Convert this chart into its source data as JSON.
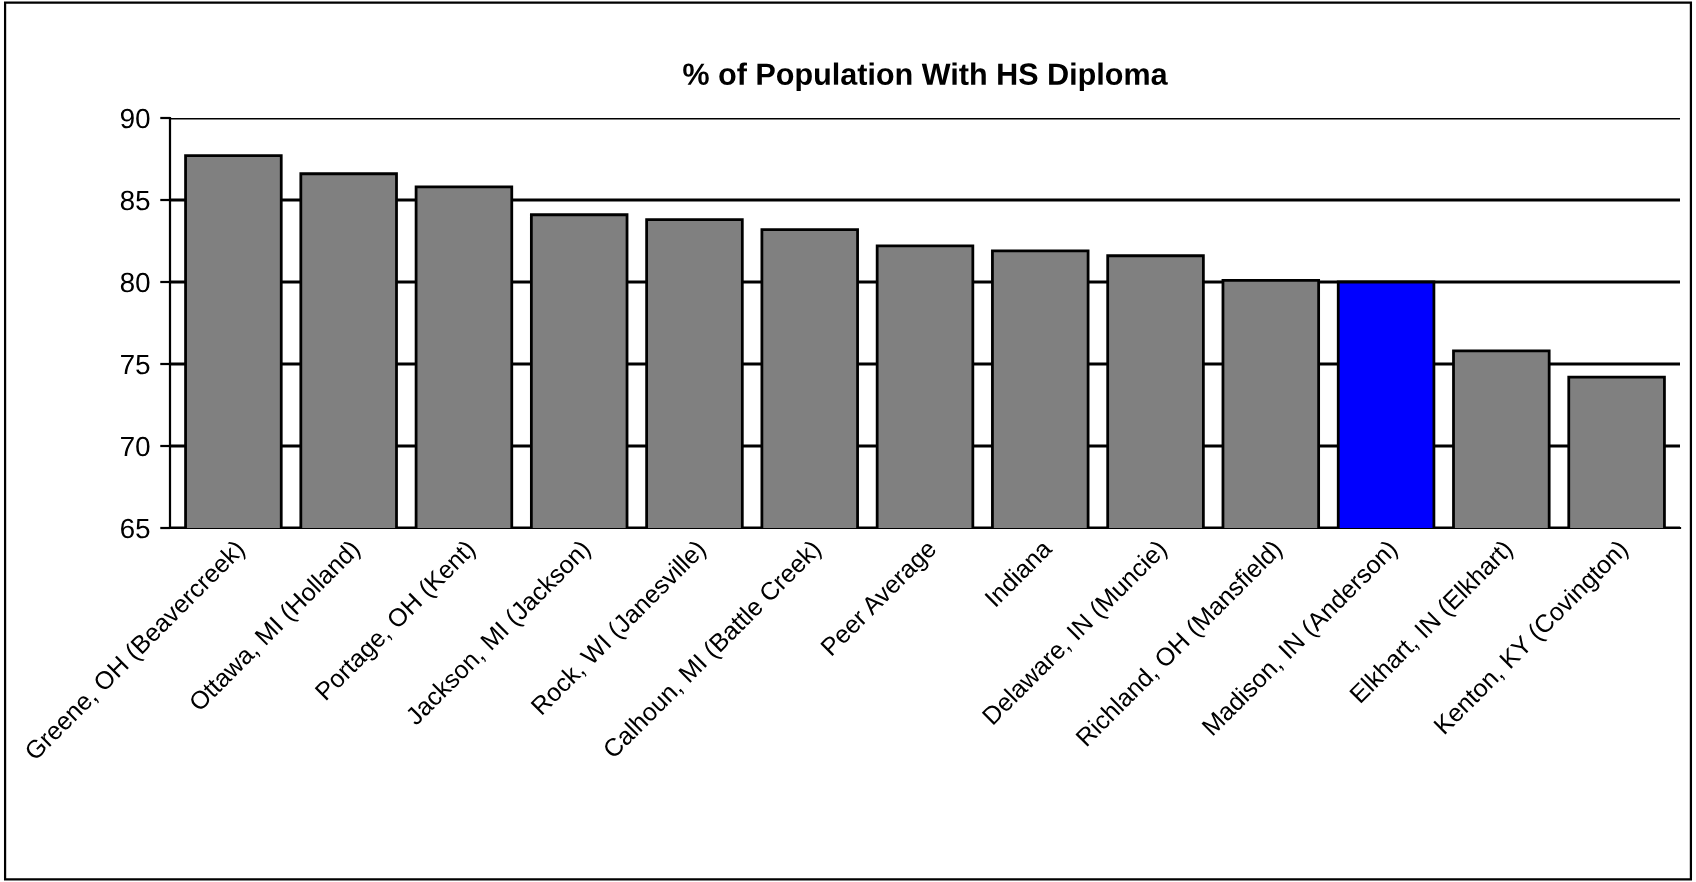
{
  "chart_data": {
    "type": "bar",
    "title": "% of Population With HS Diploma",
    "categories": [
      "Greene, OH (Beavercreek)",
      "Ottawa, MI (Holland)",
      "Portage, OH (Kent)",
      "Jackson, MI (Jackson)",
      "Rock, WI (Janesville)",
      "Calhoun, MI (Battle Creek)",
      "Peer Average",
      "Indiana",
      "Delaware, IN (Muncie)",
      "Richland, OH (Mansfield)",
      "Madison, IN (Anderson)",
      "Elkhart, IN (Elkhart)",
      "Kenton, KY (Covington)"
    ],
    "values": [
      87.7,
      86.6,
      85.8,
      84.1,
      83.8,
      83.2,
      82.2,
      81.9,
      81.6,
      80.1,
      80.0,
      75.8,
      74.2
    ],
    "colors": [
      "#808080",
      "#808080",
      "#808080",
      "#808080",
      "#808080",
      "#808080",
      "#808080",
      "#808080",
      "#808080",
      "#808080",
      "#0000ff",
      "#808080",
      "#808080"
    ],
    "ylim": [
      65,
      90
    ],
    "yticks": [
      65,
      70,
      75,
      80,
      85,
      90
    ],
    "grid": "y",
    "legend": false
  }
}
